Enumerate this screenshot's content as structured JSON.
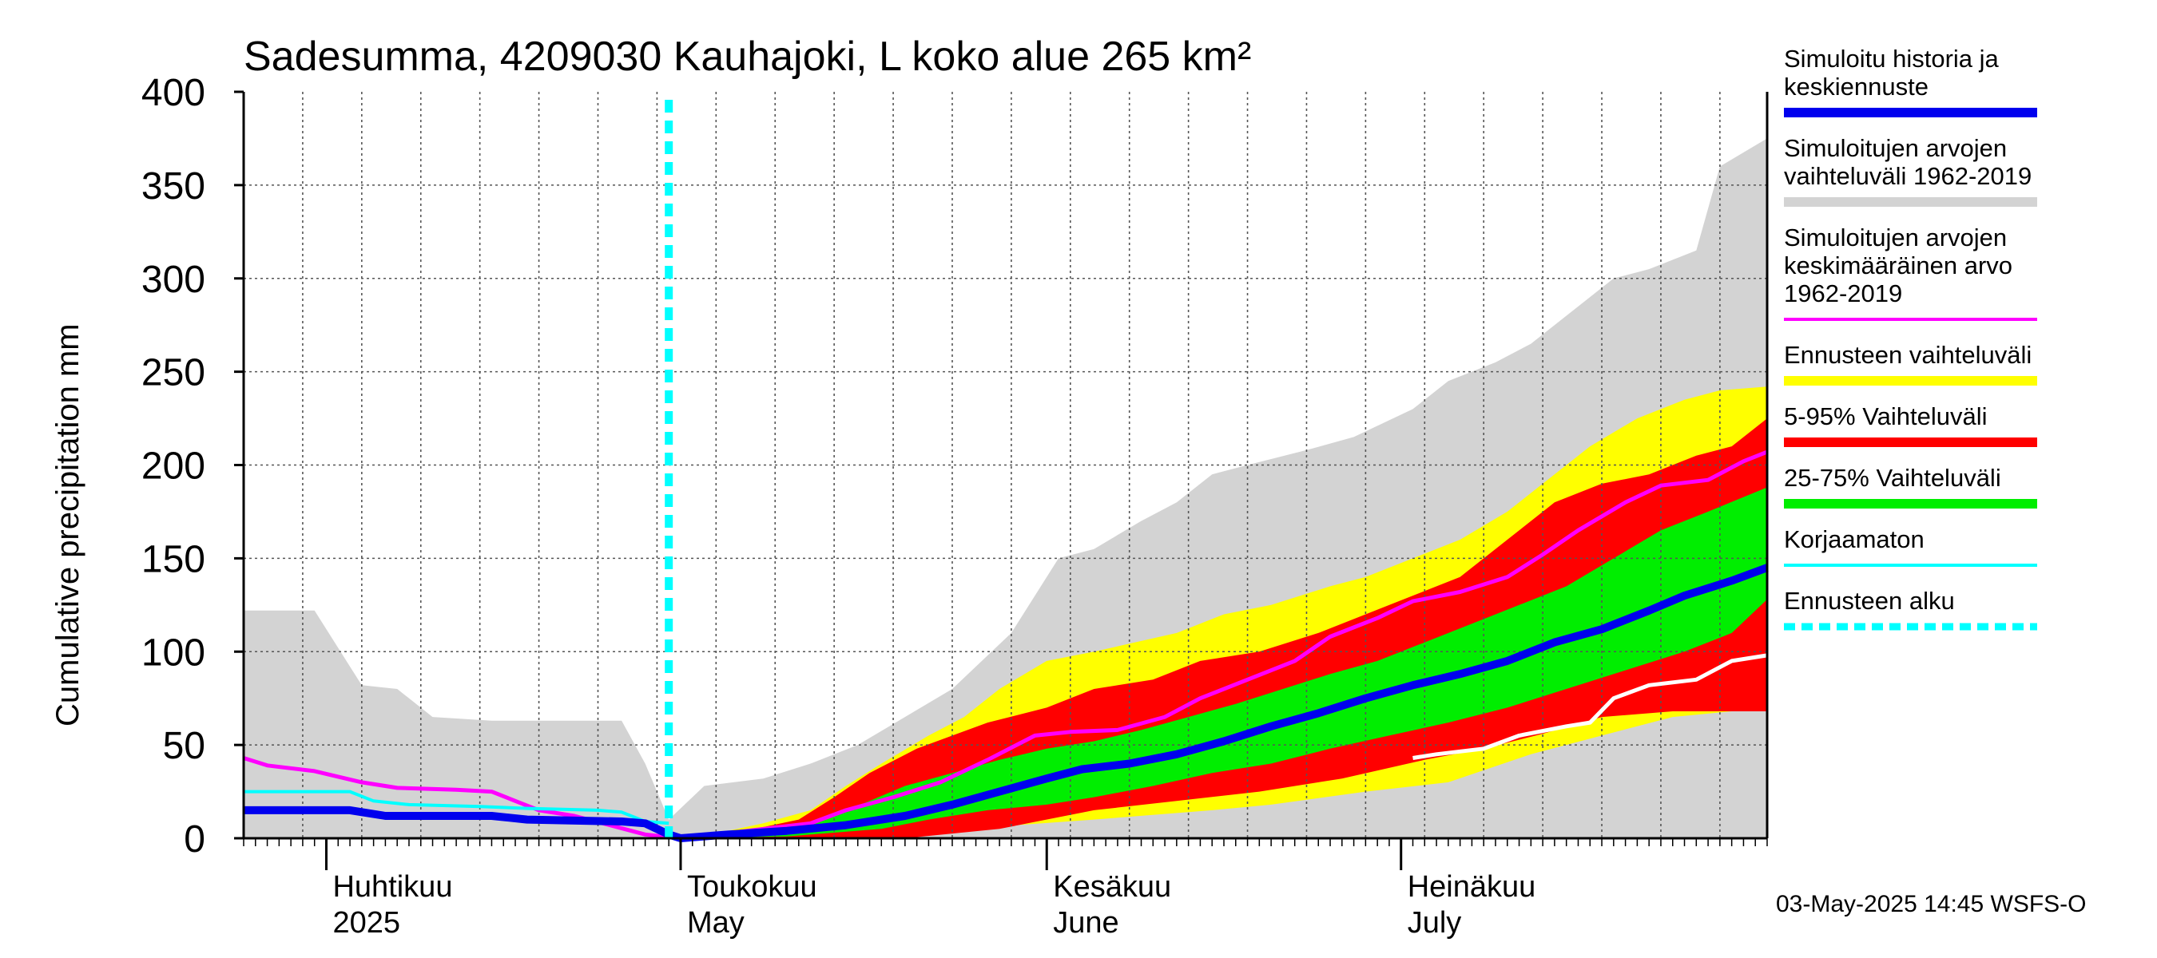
{
  "chart_data": {
    "type": "area",
    "title": "Sadesumma, 4209030 Kauhajoki, L koko alue 265 km²",
    "ylabel": "Cumulative precipitation   mm",
    "ylim": [
      0,
      400
    ],
    "yticks": [
      "0",
      "50",
      "100",
      "150",
      "200",
      "250",
      "300",
      "350",
      "400"
    ],
    "x_start": "2025-03-25",
    "x_end": "2025-08-01",
    "forecast_start": "2025-04-30",
    "month_labels": [
      {
        "date": "2025-04-01",
        "line1": "Huhtikuu",
        "line2": "2025"
      },
      {
        "date": "2025-05-01",
        "line1": "Toukokuu",
        "line2": "May"
      },
      {
        "date": "2025-06-01",
        "line1": "Kesäkuu",
        "line2": "June"
      },
      {
        "date": "2025-07-01",
        "line1": "Heinäkuu",
        "line2": "July"
      }
    ],
    "footer": "03-May-2025 14:45 WSFS-O",
    "legend": [
      {
        "label_lines": [
          "Simuloitu historia ja",
          "keskiennuste"
        ],
        "color": "#0000ee",
        "style": "solid"
      },
      {
        "label_lines": [
          "Simuloitujen arvojen",
          "vaihteluväli 1962-2019"
        ],
        "color": "#d3d3d3",
        "style": "solid"
      },
      {
        "label_lines": [
          "Simuloitujen arvojen",
          "keskimääräinen arvo",
          "   1962-2019"
        ],
        "color": "#ff00ff",
        "style": "thin"
      },
      {
        "label_lines": [
          "Ennusteen vaihteluväli"
        ],
        "color": "#ffff00",
        "style": "solid"
      },
      {
        "label_lines": [
          "5-95% Vaihteluväli"
        ],
        "color": "#ff0000",
        "style": "solid"
      },
      {
        "label_lines": [
          "25-75% Vaihteluväli"
        ],
        "color": "#00ee00",
        "style": "solid"
      },
      {
        "label_lines": [
          "Korjaamaton"
        ],
        "color": "#00ffff",
        "style": "thin"
      },
      {
        "label_lines": [
          "Ennusteen alku"
        ],
        "color": "#00ffff",
        "style": "dashed"
      }
    ],
    "series": [
      {
        "key": "hist_range",
        "name": "Simuloitujen arvojen vaihteluväli 1962-2019",
        "color": "#d3d3d3",
        "upper": [
          [
            "2025-03-25",
            122
          ],
          [
            "2025-03-31",
            122
          ],
          [
            "2025-04-04",
            82
          ],
          [
            "2025-04-07",
            80
          ],
          [
            "2025-04-10",
            65
          ],
          [
            "2025-04-15",
            63
          ],
          [
            "2025-04-26",
            63
          ],
          [
            "2025-04-28",
            40
          ],
          [
            "2025-04-30",
            10
          ],
          [
            "2025-05-03",
            28
          ],
          [
            "2025-05-08",
            32
          ],
          [
            "2025-05-12",
            40
          ],
          [
            "2025-05-16",
            50
          ],
          [
            "2025-05-20",
            65
          ],
          [
            "2025-05-24",
            80
          ],
          [
            "2025-05-29",
            110
          ],
          [
            "2025-06-02",
            150
          ],
          [
            "2025-06-05",
            155
          ],
          [
            "2025-06-09",
            170
          ],
          [
            "2025-06-12",
            180
          ],
          [
            "2025-06-15",
            195
          ],
          [
            "2025-06-18",
            200
          ],
          [
            "2025-06-23",
            208
          ],
          [
            "2025-06-27",
            215
          ],
          [
            "2025-07-02",
            230
          ],
          [
            "2025-07-05",
            245
          ],
          [
            "2025-07-09",
            255
          ],
          [
            "2025-07-12",
            265
          ],
          [
            "2025-07-15",
            280
          ],
          [
            "2025-07-19",
            300
          ],
          [
            "2025-07-22",
            305
          ],
          [
            "2025-07-26",
            315
          ],
          [
            "2025-07-28",
            360
          ],
          [
            "2025-08-01",
            375
          ]
        ],
        "lower": [
          [
            "2025-03-25",
            0
          ],
          [
            "2025-08-01",
            0
          ]
        ]
      },
      {
        "key": "forecast_range",
        "name": "Ennusteen vaihteluväli",
        "color": "#ffff00",
        "upper": [
          [
            "2025-04-30",
            0
          ],
          [
            "2025-05-05",
            4
          ],
          [
            "2025-05-08",
            8
          ],
          [
            "2025-05-12",
            15
          ],
          [
            "2025-05-15",
            28
          ],
          [
            "2025-05-18",
            40
          ],
          [
            "2025-05-22",
            55
          ],
          [
            "2025-05-25",
            65
          ],
          [
            "2025-05-28",
            80
          ],
          [
            "2025-06-01",
            95
          ],
          [
            "2025-06-05",
            100
          ],
          [
            "2025-06-12",
            110
          ],
          [
            "2025-06-16",
            120
          ],
          [
            "2025-06-20",
            125
          ],
          [
            "2025-06-25",
            135
          ],
          [
            "2025-06-28",
            140
          ],
          [
            "2025-07-02",
            150
          ],
          [
            "2025-07-06",
            160
          ],
          [
            "2025-07-10",
            175
          ],
          [
            "2025-07-13",
            190
          ],
          [
            "2025-07-17",
            210
          ],
          [
            "2025-07-21",
            225
          ],
          [
            "2025-07-25",
            235
          ],
          [
            "2025-07-28",
            240
          ],
          [
            "2025-08-01",
            242
          ]
        ],
        "lower": [
          [
            "2025-04-30",
            0
          ],
          [
            "2025-05-18",
            0
          ],
          [
            "2025-05-25",
            5
          ],
          [
            "2025-06-05",
            10
          ],
          [
            "2025-06-15",
            15
          ],
          [
            "2025-06-20",
            18
          ],
          [
            "2025-06-28",
            25
          ],
          [
            "2025-07-05",
            30
          ],
          [
            "2025-07-12",
            45
          ],
          [
            "2025-07-18",
            55
          ],
          [
            "2025-07-24",
            65
          ],
          [
            "2025-07-29",
            68
          ],
          [
            "2025-08-01",
            70
          ]
        ]
      },
      {
        "key": "p5_95",
        "name": "5-95% Vaihteluväli",
        "color": "#ff0000",
        "upper": [
          [
            "2025-04-30",
            0
          ],
          [
            "2025-05-05",
            3
          ],
          [
            "2025-05-08",
            6
          ],
          [
            "2025-05-11",
            10
          ],
          [
            "2025-05-14",
            22
          ],
          [
            "2025-05-17",
            35
          ],
          [
            "2025-05-21",
            48
          ],
          [
            "2025-05-24",
            55
          ],
          [
            "2025-05-27",
            62
          ],
          [
            "2025-06-01",
            70
          ],
          [
            "2025-06-05",
            80
          ],
          [
            "2025-06-10",
            85
          ],
          [
            "2025-06-14",
            95
          ],
          [
            "2025-06-19",
            100
          ],
          [
            "2025-06-24",
            110
          ],
          [
            "2025-06-28",
            120
          ],
          [
            "2025-07-02",
            130
          ],
          [
            "2025-07-06",
            140
          ],
          [
            "2025-07-10",
            160
          ],
          [
            "2025-07-14",
            180
          ],
          [
            "2025-07-18",
            190
          ],
          [
            "2025-07-22",
            195
          ],
          [
            "2025-07-26",
            205
          ],
          [
            "2025-07-29",
            210
          ],
          [
            "2025-08-01",
            225
          ]
        ],
        "lower": [
          [
            "2025-04-30",
            0
          ],
          [
            "2025-05-20",
            0
          ],
          [
            "2025-05-28",
            5
          ],
          [
            "2025-06-05",
            15
          ],
          [
            "2025-06-12",
            20
          ],
          [
            "2025-06-19",
            25
          ],
          [
            "2025-06-26",
            32
          ],
          [
            "2025-07-03",
            42
          ],
          [
            "2025-07-08",
            48
          ],
          [
            "2025-07-13",
            56
          ],
          [
            "2025-07-18",
            65
          ],
          [
            "2025-07-24",
            68
          ],
          [
            "2025-08-01",
            68
          ]
        ]
      },
      {
        "key": "p25_75",
        "name": "25-75% Vaihteluväli",
        "color": "#00ee00",
        "upper": [
          [
            "2025-04-30",
            0
          ],
          [
            "2025-05-06",
            3
          ],
          [
            "2025-05-10",
            5
          ],
          [
            "2025-05-14",
            12
          ],
          [
            "2025-05-17",
            20
          ],
          [
            "2025-05-20",
            28
          ],
          [
            "2025-05-24",
            35
          ],
          [
            "2025-05-28",
            42
          ],
          [
            "2025-06-01",
            48
          ],
          [
            "2025-06-05",
            52
          ],
          [
            "2025-06-09",
            58
          ],
          [
            "2025-06-13",
            65
          ],
          [
            "2025-06-17",
            72
          ],
          [
            "2025-06-21",
            80
          ],
          [
            "2025-06-25",
            88
          ],
          [
            "2025-06-29",
            95
          ],
          [
            "2025-07-03",
            105
          ],
          [
            "2025-07-07",
            115
          ],
          [
            "2025-07-11",
            125
          ],
          [
            "2025-07-15",
            135
          ],
          [
            "2025-07-19",
            150
          ],
          [
            "2025-07-23",
            165
          ],
          [
            "2025-07-27",
            175
          ],
          [
            "2025-08-01",
            188
          ]
        ],
        "lower": [
          [
            "2025-04-30",
            0
          ],
          [
            "2025-05-10",
            1
          ],
          [
            "2025-05-14",
            3
          ],
          [
            "2025-05-18",
            5
          ],
          [
            "2025-05-22",
            10
          ],
          [
            "2025-05-27",
            15
          ],
          [
            "2025-06-01",
            18
          ],
          [
            "2025-06-05",
            22
          ],
          [
            "2025-06-10",
            28
          ],
          [
            "2025-06-15",
            35
          ],
          [
            "2025-06-20",
            40
          ],
          [
            "2025-06-25",
            48
          ],
          [
            "2025-06-30",
            55
          ],
          [
            "2025-07-05",
            62
          ],
          [
            "2025-07-10",
            70
          ],
          [
            "2025-07-15",
            80
          ],
          [
            "2025-07-20",
            90
          ],
          [
            "2025-07-25",
            100
          ],
          [
            "2025-07-29",
            110
          ],
          [
            "2025-08-01",
            128
          ]
        ]
      },
      {
        "key": "history_mean",
        "name": "Simuloitujen arvojen keskimääräinen arvo 1962-2019",
        "color": "#ff00ff",
        "points": [
          [
            "2025-03-25",
            43
          ],
          [
            "2025-03-27",
            39
          ],
          [
            "2025-03-31",
            36
          ],
          [
            "2025-04-04",
            30
          ],
          [
            "2025-04-07",
            27
          ],
          [
            "2025-04-12",
            26
          ],
          [
            "2025-04-15",
            25
          ],
          [
            "2025-04-17",
            20
          ],
          [
            "2025-04-19",
            15
          ],
          [
            "2025-04-22",
            12
          ],
          [
            "2025-04-25",
            7
          ],
          [
            "2025-04-28",
            2
          ],
          [
            "2025-05-01",
            0
          ],
          [
            "2025-05-04",
            2
          ],
          [
            "2025-05-08",
            5
          ],
          [
            "2025-05-12",
            8
          ],
          [
            "2025-05-15",
            15
          ],
          [
            "2025-05-19",
            22
          ],
          [
            "2025-05-23",
            30
          ],
          [
            "2025-05-27",
            42
          ],
          [
            "2025-05-31",
            55
          ],
          [
            "2025-06-03",
            57
          ],
          [
            "2025-06-07",
            58
          ],
          [
            "2025-06-11",
            65
          ],
          [
            "2025-06-14",
            75
          ],
          [
            "2025-06-18",
            85
          ],
          [
            "2025-06-22",
            95
          ],
          [
            "2025-06-25",
            108
          ],
          [
            "2025-06-29",
            118
          ],
          [
            "2025-07-02",
            127
          ],
          [
            "2025-07-06",
            132
          ],
          [
            "2025-07-10",
            140
          ],
          [
            "2025-07-13",
            152
          ],
          [
            "2025-07-16",
            165
          ],
          [
            "2025-07-20",
            180
          ],
          [
            "2025-07-23",
            189
          ],
          [
            "2025-07-27",
            192
          ],
          [
            "2025-07-30",
            202
          ],
          [
            "2025-08-01",
            207
          ]
        ]
      },
      {
        "key": "uncorrected",
        "name": "Korjaamaton",
        "color": "#00ffff",
        "points": [
          [
            "2025-03-25",
            25
          ],
          [
            "2025-03-31",
            25
          ],
          [
            "2025-04-03",
            25
          ],
          [
            "2025-04-05",
            20
          ],
          [
            "2025-04-08",
            18
          ],
          [
            "2025-04-14",
            17
          ],
          [
            "2025-04-18",
            16
          ],
          [
            "2025-04-24",
            15
          ],
          [
            "2025-04-26",
            14
          ],
          [
            "2025-04-28",
            9
          ],
          [
            "2025-04-30",
            8
          ]
        ]
      },
      {
        "key": "sim_history",
        "name": "Simuloitu historia ja keskiennuste",
        "color": "#0000ee",
        "points": [
          [
            "2025-03-25",
            15
          ],
          [
            "2025-04-03",
            15
          ],
          [
            "2025-04-06",
            12
          ],
          [
            "2025-04-15",
            12
          ],
          [
            "2025-04-18",
            10
          ],
          [
            "2025-04-26",
            9
          ],
          [
            "2025-04-28",
            8
          ],
          [
            "2025-04-30",
            2
          ],
          [
            "2025-05-01",
            0
          ],
          [
            "2025-05-05",
            2
          ],
          [
            "2025-05-10",
            4
          ],
          [
            "2025-05-15",
            7
          ],
          [
            "2025-05-20",
            12
          ],
          [
            "2025-05-24",
            18
          ],
          [
            "2025-05-28",
            25
          ],
          [
            "2025-06-01",
            32
          ],
          [
            "2025-06-04",
            37
          ],
          [
            "2025-06-08",
            40
          ],
          [
            "2025-06-12",
            45
          ],
          [
            "2025-06-16",
            52
          ],
          [
            "2025-06-20",
            60
          ],
          [
            "2025-06-24",
            67
          ],
          [
            "2025-06-28",
            75
          ],
          [
            "2025-07-02",
            82
          ],
          [
            "2025-07-06",
            88
          ],
          [
            "2025-07-10",
            95
          ],
          [
            "2025-07-14",
            105
          ],
          [
            "2025-07-18",
            112
          ],
          [
            "2025-07-22",
            122
          ],
          [
            "2025-07-25",
            130
          ],
          [
            "2025-07-29",
            138
          ],
          [
            "2025-08-01",
            145
          ]
        ]
      },
      {
        "key": "observed_low",
        "name": "",
        "color": "#ffffff",
        "points": [
          [
            "2025-07-02",
            43
          ],
          [
            "2025-07-04",
            45
          ],
          [
            "2025-07-08",
            48
          ],
          [
            "2025-07-11",
            55
          ],
          [
            "2025-07-15",
            60
          ],
          [
            "2025-07-17",
            62
          ],
          [
            "2025-07-19",
            75
          ],
          [
            "2025-07-22",
            82
          ],
          [
            "2025-07-26",
            85
          ],
          [
            "2025-07-29",
            95
          ],
          [
            "2025-08-01",
            98
          ]
        ]
      }
    ]
  }
}
